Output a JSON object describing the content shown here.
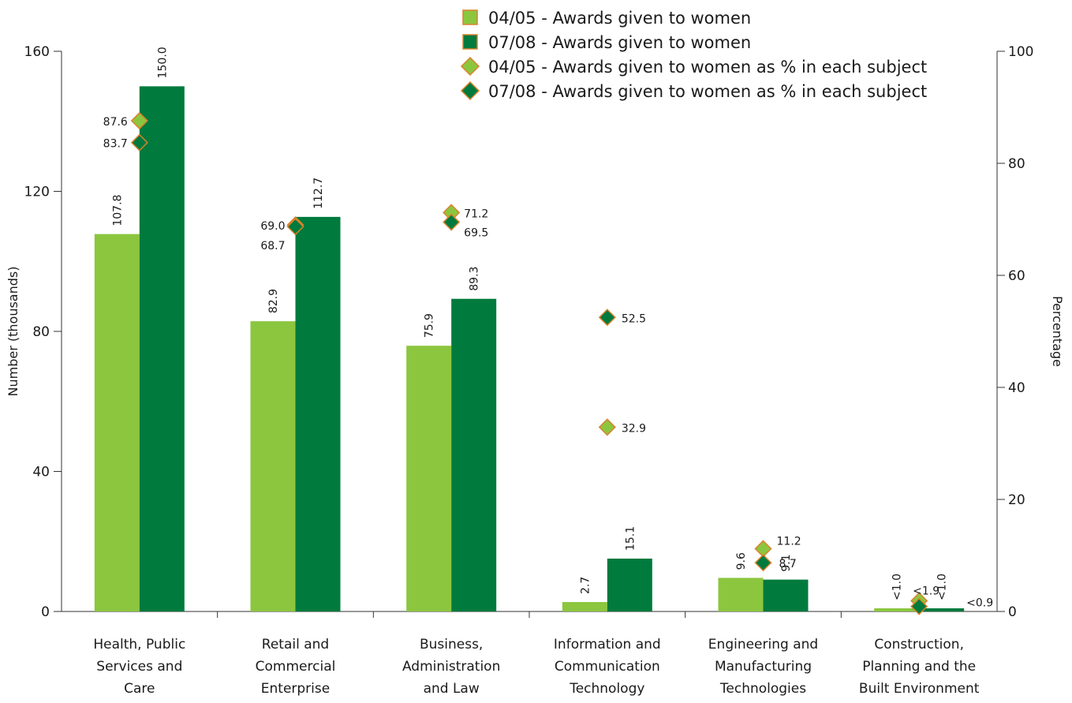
{
  "colors": {
    "light_green": "#8cc63f",
    "dark_green": "#007a3d",
    "marker_border": "#d9822b",
    "axis": "#333333"
  },
  "legend": [
    {
      "label": "04/05 - Awards given to women",
      "marker": "square",
      "color": "#8cc63f"
    },
    {
      "label": "07/08 - Awards given to women",
      "marker": "square",
      "color": "#007a3d"
    },
    {
      "label": "04/05 - Awards given to women as % in each subject",
      "marker": "diamond",
      "color": "#8cc63f"
    },
    {
      "label": "07/08 - Awards given to women as % in each subject",
      "marker": "diamond",
      "color": "#007a3d"
    }
  ],
  "chart_data": {
    "type": "bar",
    "title": "",
    "ylabel": "Number (thousands)",
    "y2label": "Percentage",
    "ylim": [
      0,
      160
    ],
    "y2lim": [
      0,
      100
    ],
    "yticks": [
      0,
      40,
      80,
      120,
      160
    ],
    "y2ticks": [
      0,
      20,
      40,
      60,
      80,
      100
    ],
    "legend_position": "top-right",
    "categories": [
      [
        "Health, Public",
        "Services and",
        "Care"
      ],
      [
        "Retail and",
        "Commercial",
        "Enterprise"
      ],
      [
        "Business,",
        "Administration",
        "and Law"
      ],
      [
        "Information and",
        "Communication",
        "Technology"
      ],
      [
        "Engineering and",
        "Manufacturing",
        "Technologies"
      ],
      [
        "Construction,",
        "Planning and the",
        "Built Environment"
      ]
    ],
    "series": [
      {
        "name": "04/05 - Awards given to women",
        "kind": "bar",
        "axis": "left",
        "values": [
          107.8,
          82.9,
          75.9,
          2.7,
          9.6,
          0.9
        ],
        "labels": [
          "107.8",
          "82.9",
          "75.9",
          "2.7",
          "9.6",
          "<1.0"
        ]
      },
      {
        "name": "07/08 - Awards given to women",
        "kind": "bar",
        "axis": "left",
        "values": [
          150.0,
          112.7,
          89.3,
          15.1,
          9.1,
          0.9
        ],
        "labels": [
          "150.0",
          "112.7",
          "89.3",
          "15.1",
          "9.1",
          "<1.0"
        ]
      },
      {
        "name": "04/05 - Awards given to women as % in each subject",
        "kind": "marker",
        "axis": "right",
        "values": [
          87.6,
          69.0,
          71.2,
          32.9,
          11.2,
          1.9
        ],
        "labels": [
          "87.6",
          "69.0",
          "71.2",
          "32.9",
          "11.2",
          "<1.9"
        ]
      },
      {
        "name": "07/08 - Awards given to women as % in each subject",
        "kind": "marker",
        "axis": "right",
        "values": [
          83.7,
          68.7,
          69.5,
          52.5,
          8.7,
          0.9
        ],
        "labels": [
          "83.7",
          "68.7",
          "69.5",
          "52.5",
          "8.7",
          "<0.9"
        ]
      }
    ]
  }
}
